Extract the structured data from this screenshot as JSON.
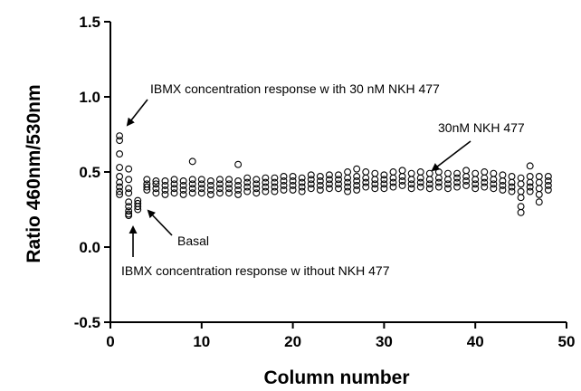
{
  "chart_data": {
    "type": "scatter",
    "xlabel": "Column number",
    "ylabel": "Ratio 460nm/530nm",
    "xlim": [
      0,
      50
    ],
    "ylim": [
      -0.5,
      1.5
    ],
    "xticks": [
      "0",
      "10",
      "20",
      "30",
      "40",
      "50"
    ],
    "yticks": [
      "-0.5",
      "0.0",
      "0.5",
      "1.0",
      "1.5"
    ],
    "grid": false,
    "legend": "none",
    "annotations": [
      {
        "text": "IBMX concentration response w ith 30 nM NKH 477",
        "x": 1,
        "y": 0.72
      },
      {
        "text": "30nM NKH 477",
        "x": 35,
        "y": 0.48
      },
      {
        "text": "Basal",
        "x": 3,
        "y": 0.24
      },
      {
        "text": "IBMX concentration response w ithout NKH 477",
        "x": 2,
        "y": 0.08
      }
    ],
    "series": [
      {
        "points": [
          [
            1,
            0.74
          ],
          [
            1,
            0.71
          ],
          [
            1,
            0.62
          ],
          [
            1,
            0.53
          ],
          [
            1,
            0.47
          ],
          [
            1,
            0.43
          ],
          [
            1,
            0.4
          ],
          [
            1,
            0.37
          ],
          [
            1,
            0.35
          ],
          [
            2,
            0.52
          ],
          [
            2,
            0.45
          ],
          [
            2,
            0.39
          ],
          [
            2,
            0.36
          ],
          [
            2,
            0.3
          ],
          [
            2,
            0.27
          ],
          [
            2,
            0.24
          ],
          [
            2,
            0.22
          ],
          [
            2,
            0.21
          ],
          [
            3,
            0.31
          ],
          [
            3,
            0.29
          ],
          [
            3,
            0.27
          ],
          [
            3,
            0.25
          ],
          [
            4,
            0.45
          ],
          [
            4,
            0.42
          ],
          [
            4,
            0.4
          ],
          [
            4,
            0.38
          ],
          [
            5,
            0.44
          ],
          [
            5,
            0.42
          ],
          [
            5,
            0.39
          ],
          [
            5,
            0.36
          ],
          [
            6,
            0.44
          ],
          [
            6,
            0.41
          ],
          [
            6,
            0.38
          ],
          [
            6,
            0.35
          ],
          [
            7,
            0.45
          ],
          [
            7,
            0.42
          ],
          [
            7,
            0.39
          ],
          [
            7,
            0.36
          ],
          [
            8,
            0.44
          ],
          [
            8,
            0.41
          ],
          [
            8,
            0.38
          ],
          [
            8,
            0.35
          ],
          [
            9,
            0.57
          ],
          [
            9,
            0.45
          ],
          [
            9,
            0.42
          ],
          [
            9,
            0.39
          ],
          [
            9,
            0.36
          ],
          [
            10,
            0.45
          ],
          [
            10,
            0.42
          ],
          [
            10,
            0.39
          ],
          [
            10,
            0.36
          ],
          [
            11,
            0.44
          ],
          [
            11,
            0.41
          ],
          [
            11,
            0.38
          ],
          [
            11,
            0.35
          ],
          [
            12,
            0.45
          ],
          [
            12,
            0.42
          ],
          [
            12,
            0.39
          ],
          [
            12,
            0.36
          ],
          [
            13,
            0.45
          ],
          [
            13,
            0.42
          ],
          [
            13,
            0.39
          ],
          [
            13,
            0.36
          ],
          [
            14,
            0.55
          ],
          [
            14,
            0.44
          ],
          [
            14,
            0.41
          ],
          [
            14,
            0.38
          ],
          [
            14,
            0.35
          ],
          [
            15,
            0.46
          ],
          [
            15,
            0.43
          ],
          [
            15,
            0.4
          ],
          [
            15,
            0.37
          ],
          [
            16,
            0.45
          ],
          [
            16,
            0.42
          ],
          [
            16,
            0.39
          ],
          [
            16,
            0.36
          ],
          [
            17,
            0.46
          ],
          [
            17,
            0.43
          ],
          [
            17,
            0.4
          ],
          [
            17,
            0.37
          ],
          [
            18,
            0.46
          ],
          [
            18,
            0.43
          ],
          [
            18,
            0.4
          ],
          [
            18,
            0.37
          ],
          [
            19,
            0.47
          ],
          [
            19,
            0.44
          ],
          [
            19,
            0.41
          ],
          [
            19,
            0.38
          ],
          [
            20,
            0.47
          ],
          [
            20,
            0.44
          ],
          [
            20,
            0.41
          ],
          [
            20,
            0.38
          ],
          [
            21,
            0.46
          ],
          [
            21,
            0.43
          ],
          [
            21,
            0.4
          ],
          [
            21,
            0.37
          ],
          [
            22,
            0.48
          ],
          [
            22,
            0.45
          ],
          [
            22,
            0.42
          ],
          [
            22,
            0.39
          ],
          [
            23,
            0.47
          ],
          [
            23,
            0.44
          ],
          [
            23,
            0.41
          ],
          [
            23,
            0.38
          ],
          [
            24,
            0.48
          ],
          [
            24,
            0.45
          ],
          [
            24,
            0.42
          ],
          [
            24,
            0.39
          ],
          [
            25,
            0.48
          ],
          [
            25,
            0.45
          ],
          [
            25,
            0.42
          ],
          [
            25,
            0.39
          ],
          [
            26,
            0.5
          ],
          [
            26,
            0.46
          ],
          [
            26,
            0.43
          ],
          [
            26,
            0.4
          ],
          [
            26,
            0.37
          ],
          [
            27,
            0.52
          ],
          [
            27,
            0.47
          ],
          [
            27,
            0.44
          ],
          [
            27,
            0.41
          ],
          [
            27,
            0.38
          ],
          [
            28,
            0.5
          ],
          [
            28,
            0.46
          ],
          [
            28,
            0.43
          ],
          [
            28,
            0.4
          ],
          [
            29,
            0.49
          ],
          [
            29,
            0.45
          ],
          [
            29,
            0.42
          ],
          [
            29,
            0.39
          ],
          [
            30,
            0.48
          ],
          [
            30,
            0.45
          ],
          [
            30,
            0.42
          ],
          [
            30,
            0.39
          ],
          [
            31,
            0.5
          ],
          [
            31,
            0.46
          ],
          [
            31,
            0.43
          ],
          [
            31,
            0.4
          ],
          [
            32,
            0.51
          ],
          [
            32,
            0.47
          ],
          [
            32,
            0.44
          ],
          [
            32,
            0.41
          ],
          [
            33,
            0.49
          ],
          [
            33,
            0.45
          ],
          [
            33,
            0.42
          ],
          [
            33,
            0.39
          ],
          [
            34,
            0.5
          ],
          [
            34,
            0.46
          ],
          [
            34,
            0.43
          ],
          [
            34,
            0.4
          ],
          [
            35,
            0.49
          ],
          [
            35,
            0.45
          ],
          [
            35,
            0.42
          ],
          [
            35,
            0.39
          ],
          [
            36,
            0.5
          ],
          [
            36,
            0.46
          ],
          [
            36,
            0.43
          ],
          [
            36,
            0.4
          ],
          [
            37,
            0.49
          ],
          [
            37,
            0.45
          ],
          [
            37,
            0.42
          ],
          [
            37,
            0.39
          ],
          [
            38,
            0.49
          ],
          [
            38,
            0.46
          ],
          [
            38,
            0.43
          ],
          [
            38,
            0.4
          ],
          [
            39,
            0.51
          ],
          [
            39,
            0.47
          ],
          [
            39,
            0.44
          ],
          [
            39,
            0.41
          ],
          [
            40,
            0.49
          ],
          [
            40,
            0.45
          ],
          [
            40,
            0.42
          ],
          [
            40,
            0.39
          ],
          [
            41,
            0.5
          ],
          [
            41,
            0.46
          ],
          [
            41,
            0.43
          ],
          [
            41,
            0.4
          ],
          [
            42,
            0.49
          ],
          [
            42,
            0.45
          ],
          [
            42,
            0.42
          ],
          [
            42,
            0.39
          ],
          [
            43,
            0.48
          ],
          [
            43,
            0.44
          ],
          [
            43,
            0.41
          ],
          [
            43,
            0.38
          ],
          [
            44,
            0.47
          ],
          [
            44,
            0.43
          ],
          [
            44,
            0.4
          ],
          [
            44,
            0.37
          ],
          [
            45,
            0.46
          ],
          [
            45,
            0.42
          ],
          [
            45,
            0.37
          ],
          [
            45,
            0.33
          ],
          [
            45,
            0.27
          ],
          [
            45,
            0.23
          ],
          [
            46,
            0.54
          ],
          [
            46,
            0.47
          ],
          [
            46,
            0.43
          ],
          [
            46,
            0.4
          ],
          [
            46,
            0.37
          ],
          [
            47,
            0.47
          ],
          [
            47,
            0.43
          ],
          [
            47,
            0.39
          ],
          [
            47,
            0.35
          ],
          [
            47,
            0.3
          ],
          [
            48,
            0.47
          ],
          [
            48,
            0.44
          ],
          [
            48,
            0.41
          ],
          [
            48,
            0.38
          ]
        ]
      }
    ]
  }
}
